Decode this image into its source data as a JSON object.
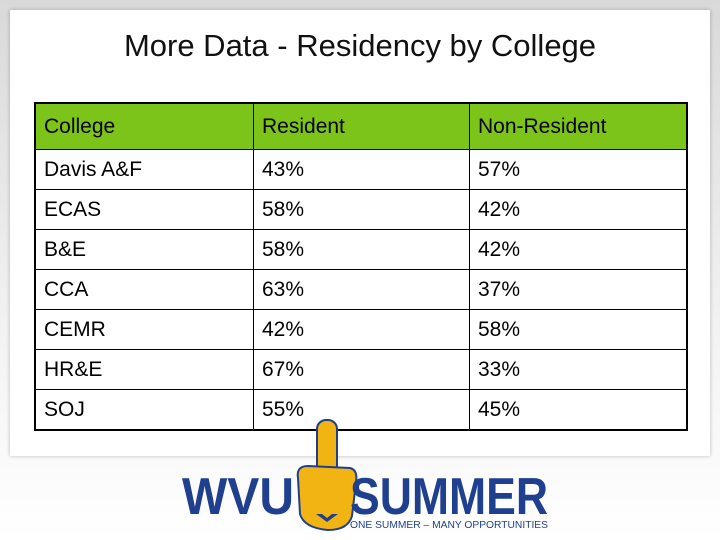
{
  "header": {
    "title": "More Data - Residency by College"
  },
  "table": {
    "columns": [
      "College",
      "Resident",
      "Non-Resident"
    ],
    "rows": [
      [
        "Davis A&F",
        "43%",
        "57%"
      ],
      [
        "ECAS",
        "58%",
        "42%"
      ],
      [
        "B&E",
        "58%",
        "42%"
      ],
      [
        "CCA",
        "63%",
        "37%"
      ],
      [
        "CEMR",
        "42%",
        "58%"
      ],
      [
        "HR&E",
        "67%",
        "33%"
      ],
      [
        "SOJ",
        "55%",
        "45%"
      ]
    ]
  },
  "logo": {
    "left": "WVU",
    "right": "SUMMER",
    "tagline": "ONE SUMMER – MANY OPPORTUNITIES"
  }
}
